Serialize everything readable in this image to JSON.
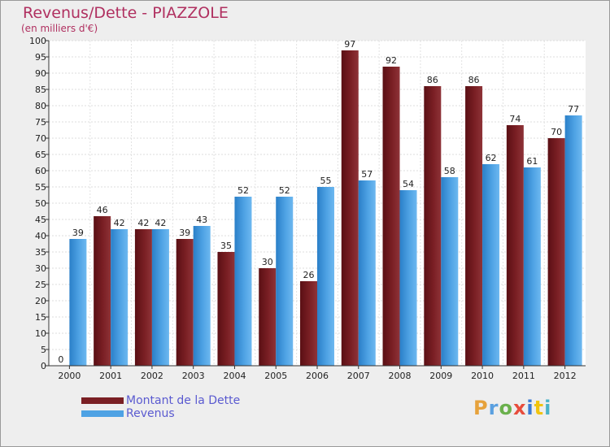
{
  "header": {
    "title": "Revenus/Dette - PIAZZOLE",
    "subtitle": "(en milliers d'€)"
  },
  "legend": {
    "dette_label": "Montant de la Dette",
    "revenus_label": "Revenus"
  },
  "logo": {
    "letters": [
      "P",
      "r",
      "o",
      "x",
      "i",
      "t",
      "i"
    ],
    "colors": [
      "#e6a23c",
      "#5aa0e0",
      "#6ab04c",
      "#e74c3c",
      "#3a7bd5",
      "#f1c40f",
      "#4ab3c8"
    ]
  },
  "colors": {
    "dette": "#7a1f24",
    "revenus": "#4ea2e4"
  },
  "chart_data": {
    "type": "bar",
    "title": "Revenus/Dette - PIAZZOLE",
    "ylabel": "(en milliers d'€)",
    "xlabel": "",
    "ylim": [
      0,
      100
    ],
    "ytick_step": 5,
    "categories": [
      "2000",
      "2001",
      "2002",
      "2003",
      "2004",
      "2005",
      "2006",
      "2007",
      "2008",
      "2009",
      "2010",
      "2011",
      "2012"
    ],
    "series": [
      {
        "name": "Montant de la Dette",
        "values": [
          0,
          46,
          42,
          39,
          35,
          30,
          26,
          97,
          92,
          86,
          86,
          74,
          70
        ]
      },
      {
        "name": "Revenus",
        "values": [
          39,
          42,
          42,
          43,
          52,
          52,
          55,
          57,
          54,
          58,
          62,
          61,
          77
        ]
      }
    ],
    "grid": true,
    "legend": "bottom-left"
  }
}
